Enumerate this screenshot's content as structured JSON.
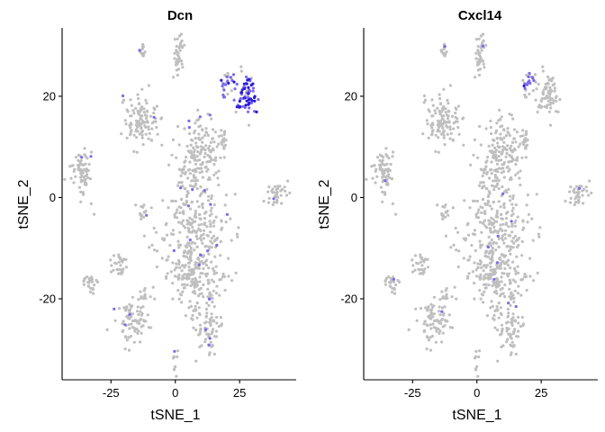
{
  "chart_data": [
    {
      "type": "scatter",
      "title": "Dcn",
      "xlabel": "tSNE_1",
      "ylabel": "tSNE_2",
      "xlim": [
        -44,
        47
      ],
      "ylim": [
        -36,
        33.5
      ],
      "xticks": [
        -25,
        0,
        25
      ],
      "yticks": [
        -20,
        0,
        20
      ],
      "xtick_labels": [
        "-25",
        "0",
        "25"
      ],
      "ytick_labels": [
        "-20",
        "0",
        "20"
      ],
      "grid": false,
      "legend": "none",
      "colors": {
        "low": "#bfbfbf",
        "mid": "#7b68ee",
        "high": "#2a1bd6"
      },
      "clusters": [
        {
          "cx": 9,
          "cy": 8,
          "rx": 9,
          "ry": 7,
          "n": 170
        },
        {
          "cx": 7,
          "cy": -5,
          "rx": 12,
          "ry": 8,
          "n": 220
        },
        {
          "cx": 8,
          "cy": -16,
          "rx": 10,
          "ry": 7,
          "n": 190
        },
        {
          "cx": 12,
          "cy": -26,
          "rx": 6,
          "ry": 5,
          "n": 70
        },
        {
          "cx": -13,
          "cy": 15,
          "rx": 6,
          "ry": 5,
          "n": 110
        },
        {
          "cx": -36,
          "cy": 5,
          "rx": 4,
          "ry": 5,
          "n": 70
        },
        {
          "cx": -17,
          "cy": -24,
          "rx": 6,
          "ry": 4,
          "n": 80
        },
        {
          "cx": -22,
          "cy": -13,
          "rx": 3,
          "ry": 3,
          "n": 30
        },
        {
          "cx": -33,
          "cy": -17,
          "rx": 3,
          "ry": 2,
          "n": 25
        },
        {
          "cx": 1,
          "cy": 28,
          "rx": 2,
          "ry": 4,
          "n": 40
        },
        {
          "cx": -13,
          "cy": 29,
          "rx": 1.5,
          "ry": 2,
          "n": 15
        },
        {
          "cx": 39,
          "cy": 1,
          "rx": 4,
          "ry": 2.5,
          "n": 35
        },
        {
          "cx": -13,
          "cy": -19,
          "rx": 1.5,
          "ry": 1.5,
          "n": 10
        },
        {
          "cx": -13,
          "cy": -3,
          "rx": 1.5,
          "ry": 2,
          "n": 15
        },
        {
          "cx": 28,
          "cy": 20,
          "rx": 4,
          "ry": 4,
          "n": 70
        },
        {
          "cx": 20,
          "cy": 23,
          "rx": 3,
          "ry": 3,
          "n": 25
        },
        {
          "cx": 0,
          "cy": -32,
          "rx": 1,
          "ry": 2,
          "n": 10
        },
        {
          "cx": 18,
          "cy": 12,
          "rx": 2,
          "ry": 2,
          "n": 12
        }
      ],
      "expr_regions": [
        {
          "cx": 28,
          "cy": 20,
          "rx": 4,
          "ry": 4,
          "frac": 0.9,
          "high_frac": 0.35
        },
        {
          "cx": 20,
          "cy": 23,
          "rx": 3,
          "ry": 3,
          "frac": 0.6,
          "high_frac": 0.2
        }
      ],
      "expr_scatter_frac": 0.03
    },
    {
      "type": "scatter",
      "title": "Cxcl14",
      "xlabel": "tSNE_1",
      "ylabel": "tSNE_2",
      "xlim": [
        -44,
        47
      ],
      "ylim": [
        -36,
        33.5
      ],
      "xticks": [
        -25,
        0,
        25
      ],
      "yticks": [
        -20,
        0,
        20
      ],
      "xtick_labels": [
        "-25",
        "0",
        "25"
      ],
      "ytick_labels": [
        "-20",
        "0",
        "20"
      ],
      "grid": false,
      "legend": "none",
      "colors": {
        "low": "#bfbfbf",
        "mid": "#7b68ee",
        "high": "#2a1bd6"
      },
      "clusters": [
        {
          "cx": 9,
          "cy": 8,
          "rx": 9,
          "ry": 7,
          "n": 170
        },
        {
          "cx": 7,
          "cy": -5,
          "rx": 12,
          "ry": 8,
          "n": 220
        },
        {
          "cx": 8,
          "cy": -16,
          "rx": 10,
          "ry": 7,
          "n": 190
        },
        {
          "cx": 12,
          "cy": -26,
          "rx": 6,
          "ry": 5,
          "n": 70
        },
        {
          "cx": -13,
          "cy": 15,
          "rx": 6,
          "ry": 5,
          "n": 110
        },
        {
          "cx": -36,
          "cy": 5,
          "rx": 4,
          "ry": 5,
          "n": 70
        },
        {
          "cx": -17,
          "cy": -24,
          "rx": 6,
          "ry": 4,
          "n": 80
        },
        {
          "cx": -22,
          "cy": -13,
          "rx": 3,
          "ry": 3,
          "n": 30
        },
        {
          "cx": -33,
          "cy": -17,
          "rx": 3,
          "ry": 2,
          "n": 25
        },
        {
          "cx": 1,
          "cy": 28,
          "rx": 2,
          "ry": 4,
          "n": 40
        },
        {
          "cx": -13,
          "cy": 29,
          "rx": 1.5,
          "ry": 2,
          "n": 15
        },
        {
          "cx": 39,
          "cy": 1,
          "rx": 4,
          "ry": 2.5,
          "n": 35
        },
        {
          "cx": -13,
          "cy": -19,
          "rx": 1.5,
          "ry": 1.5,
          "n": 10
        },
        {
          "cx": -13,
          "cy": -3,
          "rx": 1.5,
          "ry": 2,
          "n": 15
        },
        {
          "cx": 28,
          "cy": 20,
          "rx": 4,
          "ry": 4,
          "n": 70
        },
        {
          "cx": 20,
          "cy": 23,
          "rx": 3,
          "ry": 3,
          "n": 25
        },
        {
          "cx": 0,
          "cy": -32,
          "rx": 1,
          "ry": 2,
          "n": 10
        },
        {
          "cx": 18,
          "cy": 12,
          "rx": 2,
          "ry": 2,
          "n": 12
        }
      ],
      "expr_regions": [
        {
          "cx": 19,
          "cy": 24,
          "rx": 2.5,
          "ry": 2.5,
          "frac": 0.65,
          "high_frac": 0.1
        }
      ],
      "expr_scatter_frac": 0.015
    }
  ]
}
